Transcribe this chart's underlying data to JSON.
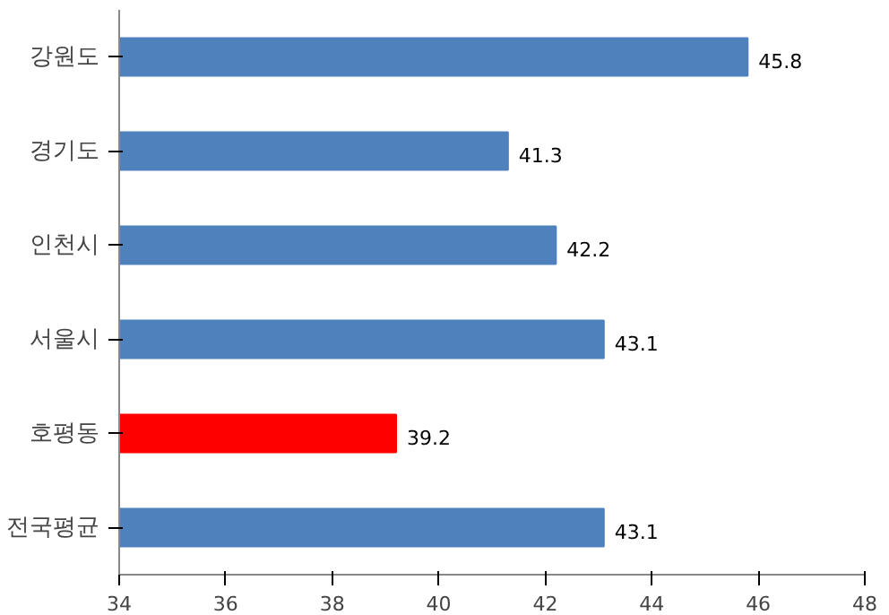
{
  "chart_data": {
    "type": "bar",
    "orientation": "horizontal",
    "categories": [
      "강원도",
      "경기도",
      "인천시",
      "서울시",
      "호평동",
      "전국평균"
    ],
    "values": [
      45.8,
      41.3,
      42.2,
      43.1,
      39.2,
      43.1
    ],
    "colors": [
      "#4f81bd",
      "#4f81bd",
      "#4f81bd",
      "#4f81bd",
      "#ff0000",
      "#4f81bd"
    ],
    "xlim": [
      34,
      48
    ],
    "xticks": [
      34,
      36,
      38,
      40,
      42,
      44,
      46,
      48
    ],
    "data_labels": true,
    "grid": false
  }
}
